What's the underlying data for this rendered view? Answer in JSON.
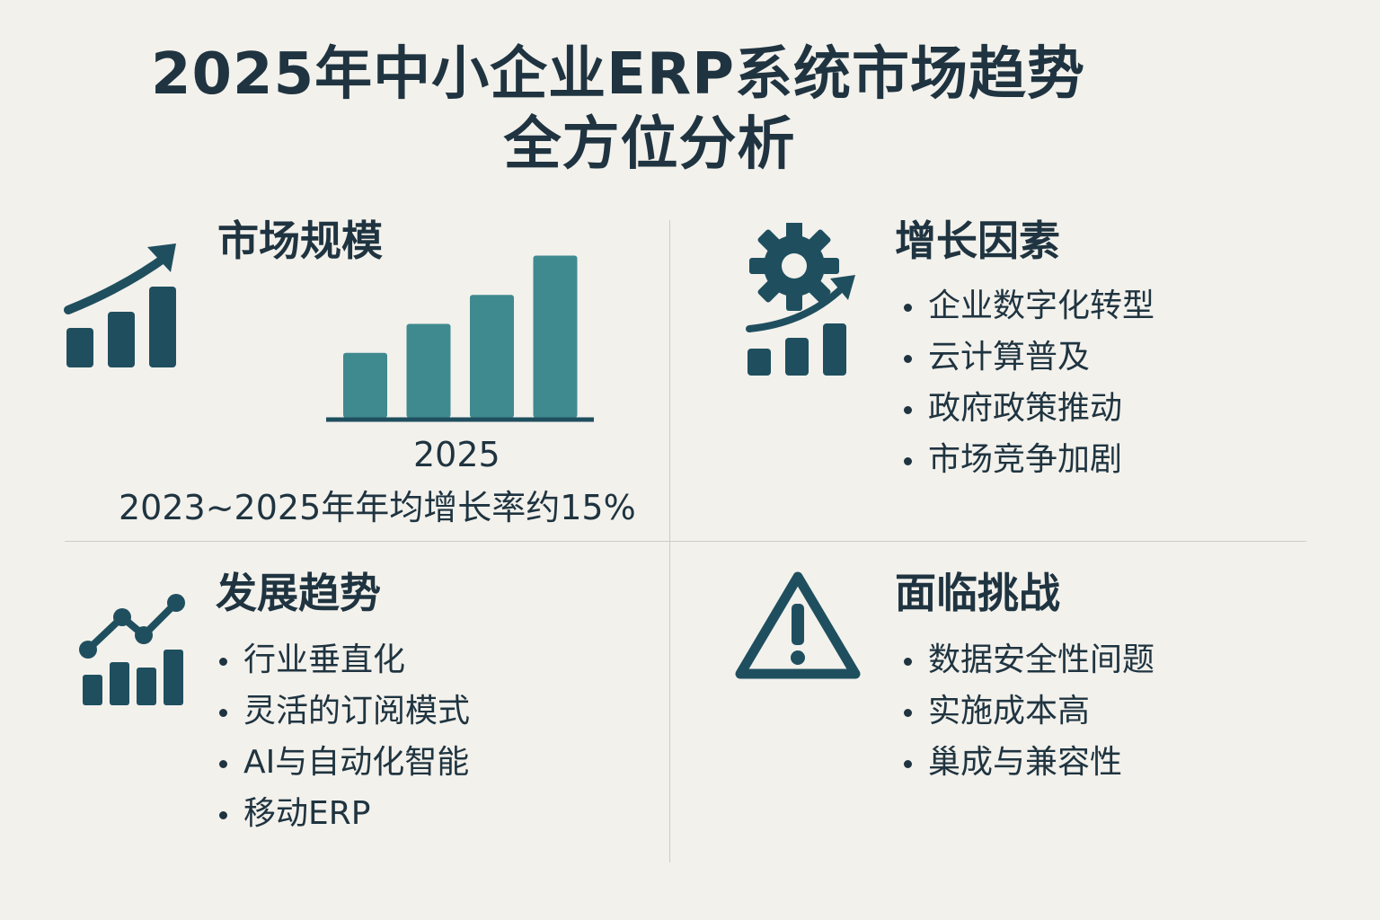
{
  "title": {
    "line1": "2025年中小企业ERP系统市场趋势",
    "line2": "全方位分析"
  },
  "colors": {
    "dark": "#1f4f5f",
    "teal": "#3f8a8f",
    "text": "#1f3440",
    "background": "#f3f1ec"
  },
  "sections": {
    "market_size": {
      "heading": "市场规模",
      "icon": "growth-bar-chart-icon",
      "year_label": "2025",
      "growth_text": "2023~2025年年均增长率约15%"
    },
    "growth_factors": {
      "heading": "增长因素",
      "icon": "gear-growth-icon",
      "items": [
        "企业数字化转型",
        "云计算普及",
        "政府政策推动",
        "市场竞争加剧"
      ]
    },
    "trends": {
      "heading": "发展趋势",
      "icon": "line-chart-icon",
      "items": [
        "行业垂直化",
        "灵活的订阅模式",
        "AI与自动化智能",
        "移动ERP"
      ]
    },
    "challenges": {
      "heading": "面临挑战",
      "icon": "warning-icon",
      "items": [
        "数据安全性间题",
        "实施成本高",
        "巢成与兼容性"
      ]
    }
  },
  "chart_data": {
    "type": "bar",
    "categories": [
      "",
      "",
      "",
      ""
    ],
    "values": [
      38,
      55,
      72,
      95
    ],
    "ylim": [
      0,
      100
    ],
    "title": "",
    "xlabel": "2025",
    "ylabel": ""
  }
}
